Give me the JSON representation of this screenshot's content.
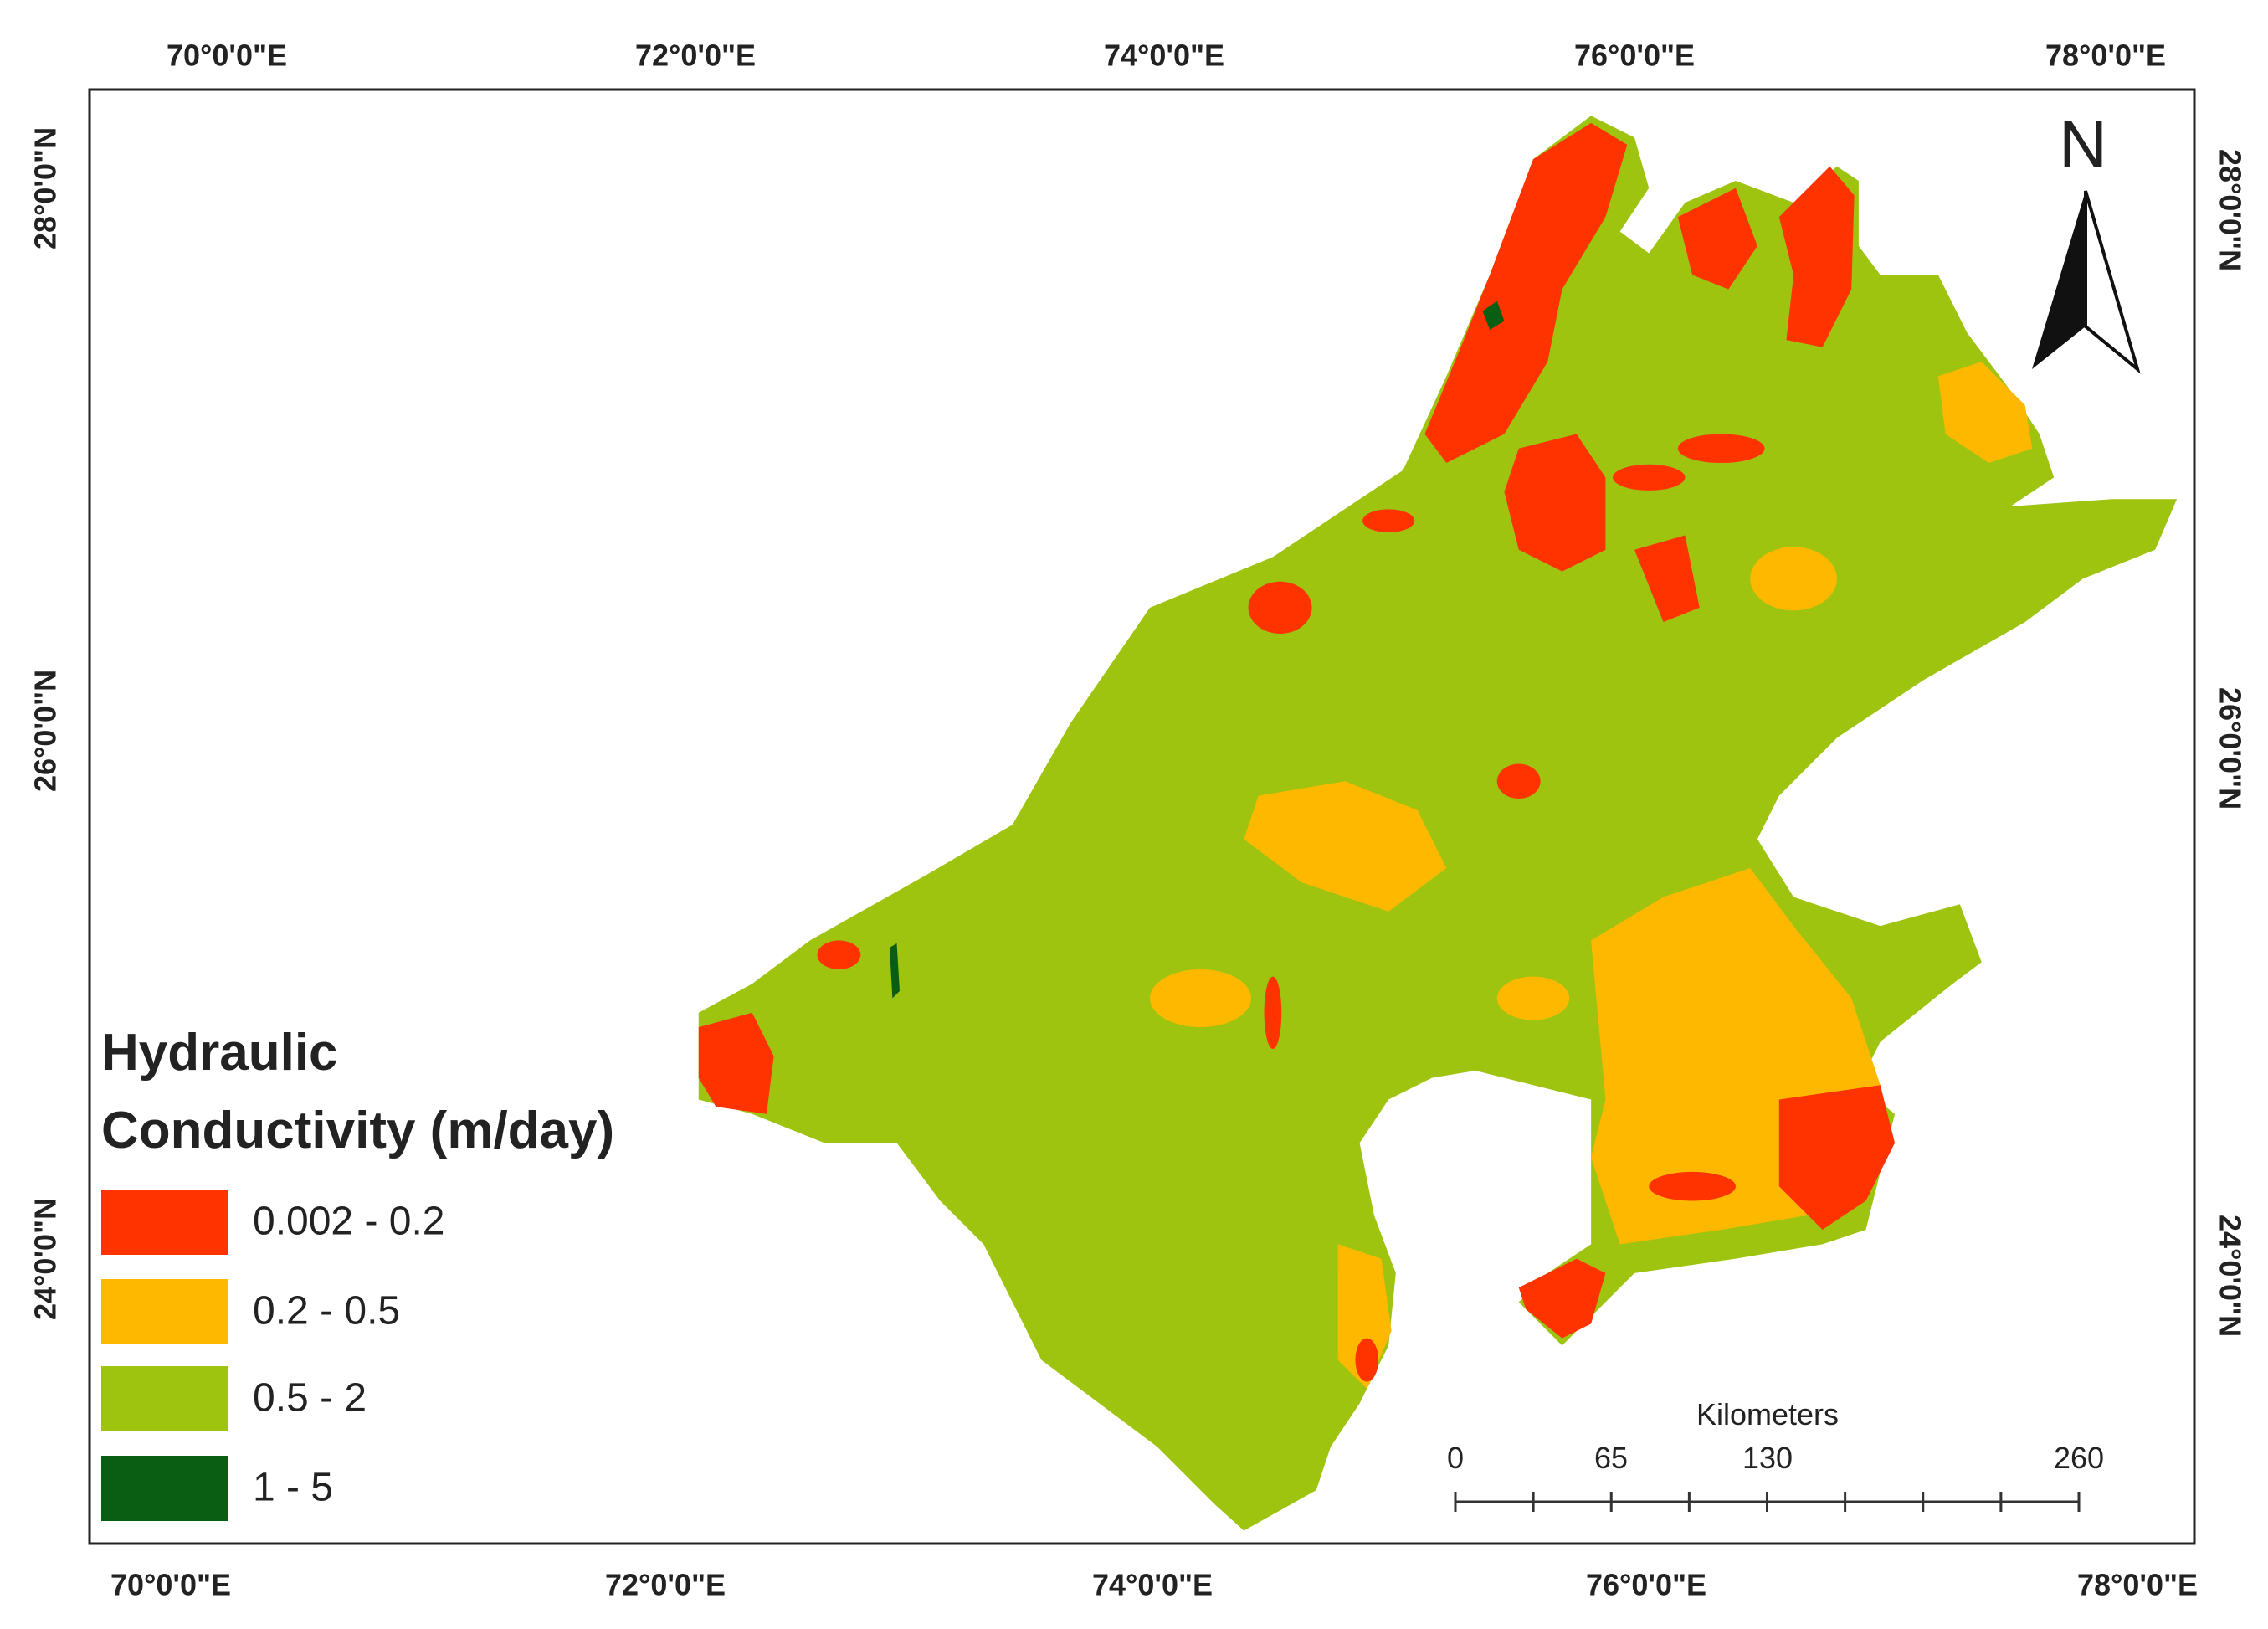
{
  "map": {
    "top_labels": [
      "70°0'0\"E",
      "72°0'0\"E",
      "74°0'0\"E",
      "76°0'0\"E",
      "78°0'0\"E"
    ],
    "bottom_labels": [
      "70°0'0\"E",
      "72°0'0\"E",
      "74°0'0\"E",
      "76°0'0\"E",
      "78°0'0\"E"
    ],
    "left_labels": [
      "28°0'0\"N",
      "26°0'0\"N",
      "24°0'0\"N"
    ],
    "right_labels": [
      "28°0'0\"N",
      "26°0'0\"N",
      "24°0'0\"N"
    ],
    "north": "N",
    "legend": {
      "title_lines": [
        "Hydraulic",
        "Conductivity (m/day)"
      ],
      "items": [
        "0.002 - 0.2",
        "0.2 - 0.5",
        "0.5 - 2",
        "1 - 5"
      ]
    },
    "scale_bar": {
      "unit": "Kilometers",
      "labels": [
        "0",
        "65",
        "130",
        "260"
      ]
    }
  }
}
